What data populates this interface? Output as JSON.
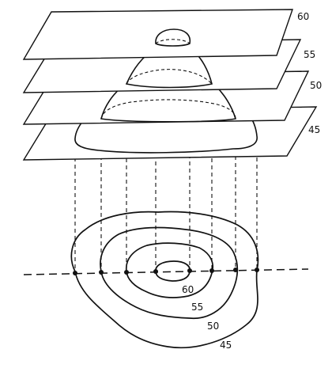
{
  "levels": [
    "60",
    "55",
    "50",
    "45"
  ],
  "map_labels": [
    "60",
    "55",
    "50",
    "45"
  ]
}
